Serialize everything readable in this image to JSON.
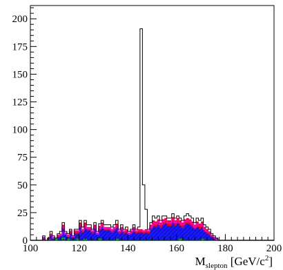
{
  "chart_data": {
    "type": "histogram",
    "xlabel": {
      "base": "M",
      "subscript": "slepton",
      "unit_prefix": " [GeV/c",
      "unit_superscript": "2",
      "unit_suffix": "]"
    },
    "ylabel": "",
    "xlim": [
      100,
      200
    ],
    "ylim": [
      0,
      212
    ],
    "grid": false,
    "x_ticks": [
      100,
      120,
      140,
      160,
      180,
      200
    ],
    "y_ticks": [
      0,
      25,
      50,
      75,
      100,
      125,
      150,
      175,
      200
    ],
    "bin_width": 1,
    "bin_start": 100,
    "colors": {
      "data_outline": "#000000",
      "red_fill": "#ff0000",
      "magenta_line": "#ff00ff",
      "blue_fill": "#1a1aff",
      "blue_hatch": "#00007a",
      "green_line": "#00c800"
    },
    "series": [
      {
        "style": "step-outline",
        "color": "#000000",
        "values": [
          0,
          0,
          0,
          0,
          0,
          4,
          0,
          2,
          8,
          4,
          2,
          6,
          8,
          16,
          8,
          6,
          10,
          4,
          10,
          10,
          18,
          12,
          18,
          14,
          14,
          10,
          16,
          8,
          15,
          18,
          14,
          14,
          14,
          12,
          14,
          18,
          10,
          14,
          10,
          12,
          8,
          10,
          14,
          10,
          12,
          191,
          50,
          28,
          10,
          16,
          22,
          20,
          22,
          18,
          22,
          22,
          20,
          20,
          24,
          20,
          22,
          20,
          18,
          22,
          24,
          22,
          20,
          16,
          20,
          18,
          20,
          14,
          12,
          10,
          6,
          4,
          2,
          0,
          0,
          0,
          0,
          0,
          0,
          0,
          0,
          0,
          0,
          0,
          0,
          0,
          0,
          0,
          0,
          0,
          0,
          0,
          0,
          0,
          0,
          0
        ]
      },
      {
        "style": "filled",
        "color": "#ff0000",
        "values": [
          0,
          0,
          0,
          0,
          0,
          3,
          0,
          2,
          6,
          3,
          2,
          5,
          6,
          14,
          7,
          5,
          9,
          3,
          9,
          9,
          16,
          10,
          16,
          12,
          12,
          9,
          14,
          7,
          13,
          16,
          12,
          12,
          12,
          10,
          12,
          15,
          9,
          12,
          9,
          10,
          7,
          9,
          12,
          9,
          10,
          10,
          9,
          10,
          9,
          14,
          18,
          17,
          19,
          16,
          19,
          20,
          18,
          18,
          21,
          18,
          20,
          18,
          16,
          19,
          20,
          19,
          17,
          14,
          17,
          15,
          17,
          12,
          10,
          8,
          5,
          3,
          2,
          0,
          0,
          0,
          0,
          0,
          0,
          0,
          0,
          0,
          0,
          0,
          0,
          0,
          0,
          0,
          0,
          0,
          0,
          0,
          0,
          0,
          0,
          0
        ]
      },
      {
        "style": "step-line",
        "color": "#ff00ff",
        "values": [
          0,
          0,
          0,
          0,
          0,
          2,
          0,
          1,
          5,
          2,
          1,
          4,
          5,
          12,
          6,
          4,
          8,
          3,
          8,
          8,
          14,
          9,
          14,
          11,
          11,
          8,
          12,
          6,
          11,
          14,
          11,
          11,
          11,
          9,
          11,
          13,
          8,
          11,
          8,
          9,
          6,
          8,
          11,
          8,
          9,
          9,
          8,
          9,
          8,
          12,
          16,
          15,
          17,
          14,
          17,
          18,
          16,
          16,
          19,
          16,
          18,
          16,
          14,
          17,
          18,
          17,
          15,
          12,
          15,
          13,
          15,
          10,
          8,
          7,
          4,
          2,
          1,
          0,
          0,
          0,
          0,
          0,
          0,
          0,
          0,
          0,
          0,
          0,
          0,
          0,
          0,
          0,
          0,
          0,
          0,
          0,
          0,
          0,
          0,
          0
        ]
      },
      {
        "style": "filled-hatched",
        "color": "#1a1aff",
        "values": [
          0,
          0,
          0,
          0,
          0,
          1,
          0,
          1,
          4,
          2,
          1,
          3,
          4,
          10,
          5,
          3,
          6,
          2,
          6,
          6,
          12,
          7,
          11,
          9,
          9,
          6,
          10,
          5,
          9,
          12,
          9,
          9,
          9,
          7,
          9,
          11,
          6,
          9,
          6,
          7,
          5,
          6,
          9,
          6,
          7,
          7,
          6,
          7,
          6,
          10,
          13,
          12,
          14,
          11,
          14,
          15,
          13,
          13,
          16,
          13,
          15,
          13,
          11,
          14,
          15,
          14,
          12,
          10,
          12,
          10,
          12,
          8,
          6,
          5,
          3,
          2,
          1,
          0,
          0,
          0,
          0,
          0,
          0,
          0,
          0,
          0,
          0,
          0,
          0,
          0,
          0,
          0,
          0,
          0,
          0,
          0,
          0,
          0,
          0,
          0
        ]
      },
      {
        "style": "step-line",
        "color": "#00c800",
        "values": [
          0,
          0,
          0,
          0,
          0,
          0,
          0,
          0,
          0,
          0,
          1,
          0,
          0,
          2,
          0,
          1,
          0,
          0,
          0,
          1,
          0,
          0,
          1,
          0,
          0,
          0,
          0,
          0,
          1,
          0,
          0,
          0,
          0,
          0,
          0,
          1,
          0,
          0,
          0,
          0,
          0,
          0,
          0,
          0,
          0,
          0,
          0,
          0,
          0,
          0,
          0,
          0,
          0,
          0,
          0,
          0,
          0,
          0,
          0,
          0,
          0,
          1,
          0,
          0,
          0,
          0,
          0,
          0,
          0,
          0,
          1,
          0,
          0,
          0,
          0,
          0,
          0,
          0,
          0,
          0,
          0,
          0,
          0,
          0,
          0,
          0,
          0,
          0,
          0,
          0,
          0,
          0,
          0,
          0,
          0,
          0,
          0,
          0,
          0,
          0
        ]
      }
    ]
  }
}
